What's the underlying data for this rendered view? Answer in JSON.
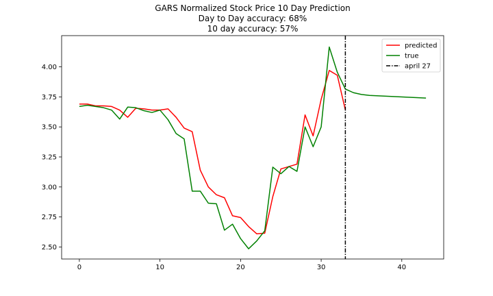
{
  "chart_data": {
    "type": "line",
    "title_lines": [
      "GARS Normalized Stock Price 10 Day Prediction",
      "Day to Day accuracy: 68%",
      "10 day accuracy: 57%"
    ],
    "xlabel": "",
    "ylabel": "",
    "xlim": [
      -2.2,
      45.2
    ],
    "ylim": [
      2.4,
      4.26
    ],
    "xticks": [
      0,
      10,
      20,
      30,
      40
    ],
    "yticks": [
      2.5,
      2.75,
      3.0,
      3.25,
      3.5,
      3.75,
      4.0
    ],
    "ytick_labels": [
      "2.50",
      "2.75",
      "3.00",
      "3.25",
      "3.50",
      "3.75",
      "4.00"
    ],
    "grid": false,
    "legend_position": "top-right",
    "series": [
      {
        "name": "predicted",
        "color": "#ff0000",
        "x": [
          0,
          1,
          2,
          3,
          4,
          5,
          6,
          7,
          8,
          9,
          10,
          11,
          12,
          13,
          14,
          15,
          16,
          17,
          18,
          19,
          20,
          21,
          22,
          23,
          24,
          25,
          26,
          27,
          28,
          29,
          30,
          31,
          32,
          33
        ],
        "y": [
          3.69,
          3.69,
          3.675,
          3.675,
          3.67,
          3.64,
          3.58,
          3.655,
          3.65,
          3.64,
          3.64,
          3.65,
          3.58,
          3.49,
          3.46,
          3.14,
          3.0,
          2.935,
          2.91,
          2.76,
          2.745,
          2.67,
          2.61,
          2.615,
          2.92,
          3.15,
          3.17,
          3.19,
          3.6,
          3.425,
          3.73,
          3.97,
          3.93,
          3.64
        ]
      },
      {
        "name": "true",
        "color": "#008000",
        "x": [
          0,
          1,
          2,
          3,
          4,
          5,
          6,
          7,
          8,
          9,
          10,
          11,
          12,
          13,
          14,
          15,
          16,
          17,
          18,
          19,
          20,
          21,
          22,
          23,
          24,
          25,
          26,
          27,
          28,
          29,
          30,
          31,
          32,
          33,
          34,
          35,
          36,
          43
        ],
        "y": [
          3.67,
          3.68,
          3.67,
          3.66,
          3.64,
          3.565,
          3.665,
          3.66,
          3.635,
          3.62,
          3.64,
          3.56,
          3.445,
          3.4,
          2.965,
          2.965,
          2.865,
          2.86,
          2.64,
          2.69,
          2.57,
          2.485,
          2.55,
          2.635,
          3.165,
          3.11,
          3.17,
          3.13,
          3.5,
          3.335,
          3.5,
          4.165,
          3.955,
          3.815,
          3.785,
          3.77,
          3.762,
          3.74
        ]
      }
    ],
    "vlines": [
      {
        "name": "april 27",
        "x": 33,
        "color": "#000000",
        "style": "dashdot"
      }
    ]
  }
}
